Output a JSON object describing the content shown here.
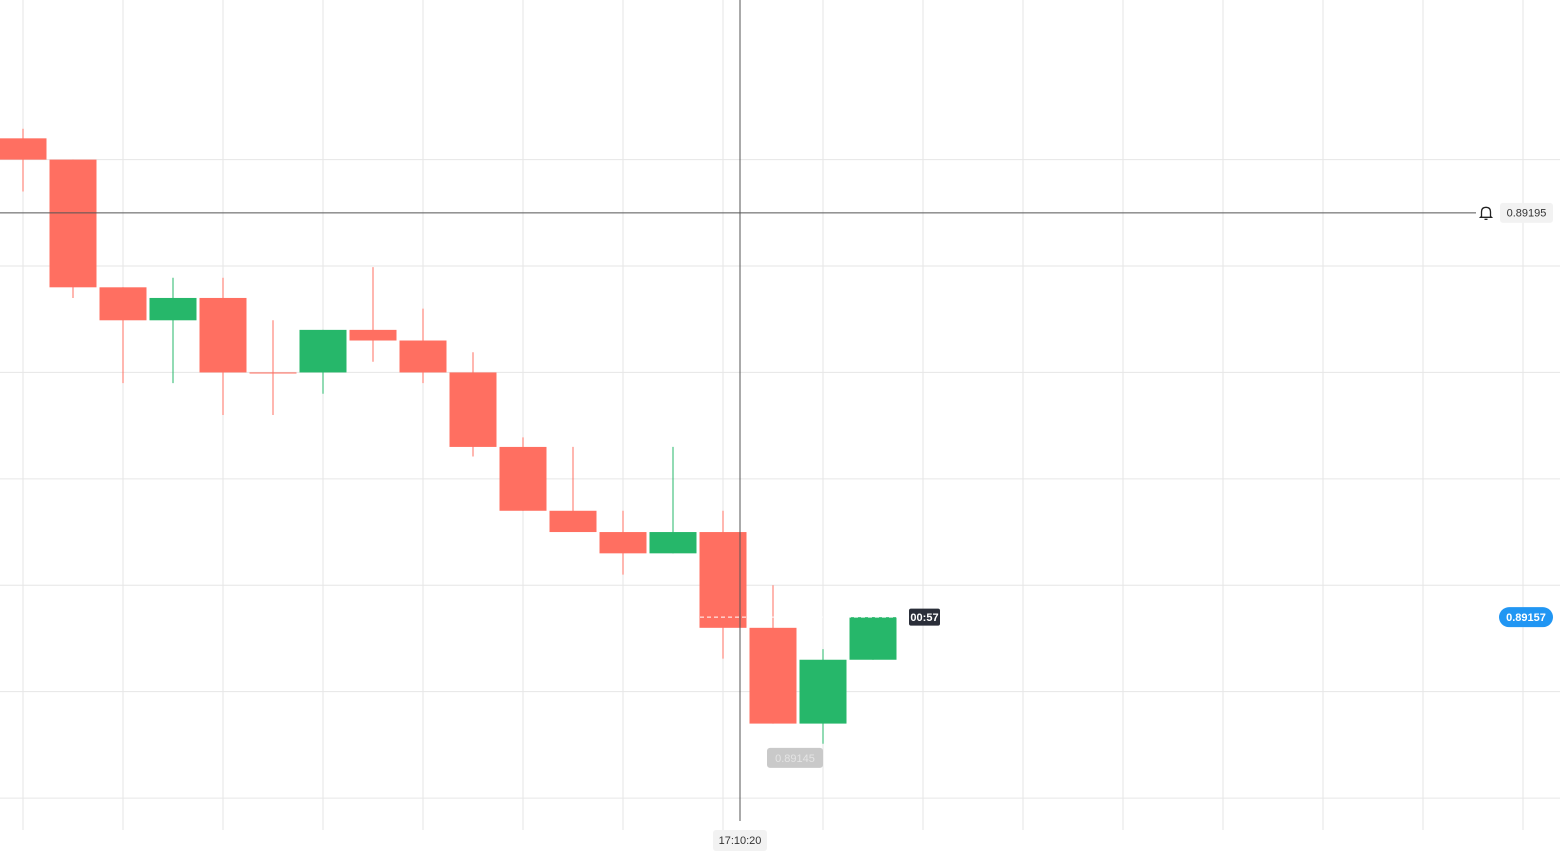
{
  "chart_data": {
    "type": "candlestick",
    "open": [
      0.89202,
      0.892,
      0.89188,
      0.891849,
      0.89187,
      0.8918,
      0.8918,
      0.89184,
      0.89183,
      0.8918,
      0.89173,
      0.89167,
      0.89165,
      0.89163,
      0.89165,
      0.89156,
      0.89147,
      0.89153
    ],
    "high": [
      0.892029,
      0.892,
      0.89188,
      0.891889,
      0.891889,
      0.891849,
      0.89184,
      0.891899,
      0.89186,
      0.891819,
      0.891739,
      0.89173,
      0.89167,
      0.89173,
      0.89167,
      0.8916,
      0.89154,
      0.89157
    ],
    "low": [
      0.89197,
      0.89187,
      0.89179,
      0.89179,
      0.89176,
      0.89176,
      0.89178,
      0.89181,
      0.89179,
      0.891721,
      0.89167,
      0.89165,
      0.89161,
      0.89163,
      0.891531,
      0.89147,
      0.891451,
      0.89153
    ],
    "close": [
      0.892,
      0.89188,
      0.891849,
      0.89187,
      0.8918,
      0.891799,
      0.89184,
      0.89183,
      0.8918,
      0.89173,
      0.89167,
      0.89165,
      0.89163,
      0.89165,
      0.89156,
      0.89147,
      0.89153,
      0.89157
    ],
    "up_color": "#26b76a",
    "down_color": "#ff6f61",
    "ylim": [
      0.89137,
      0.89215
    ],
    "yticks": [
      0.892,
      0.8919,
      0.8918,
      0.8917,
      0.8916,
      0.8915,
      0.8914
    ],
    "grid": true,
    "crosshair": {
      "price": 0.89195,
      "time": "17:10:20"
    },
    "current_price": 0.89157,
    "countdown": "00:57",
    "low_label": 0.89145
  }
}
